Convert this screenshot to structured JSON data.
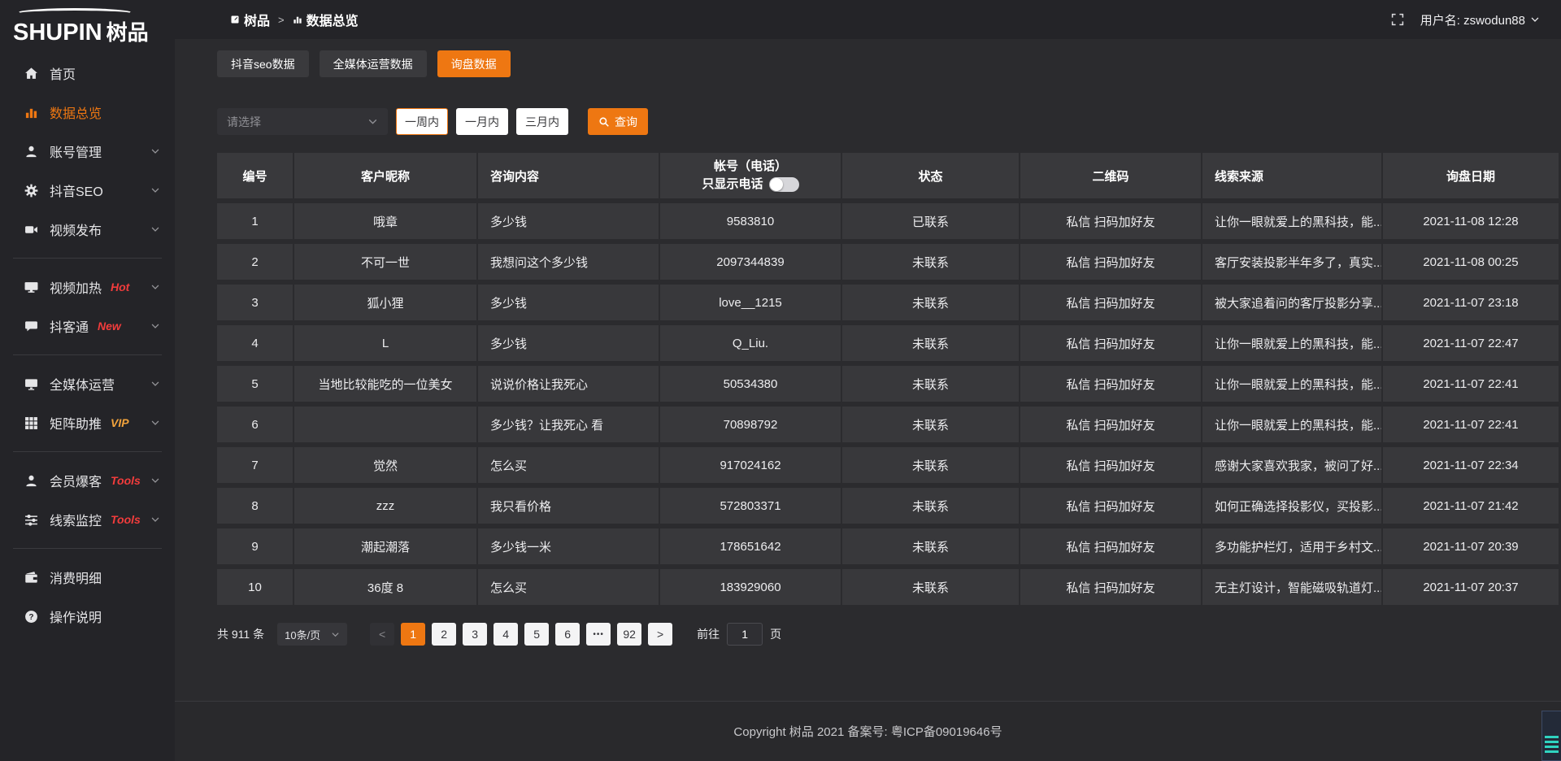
{
  "theme": {
    "accent": "#ee7712",
    "badge_red": "#f23c3c",
    "badge_vip": "#f2a33c",
    "status_contacted_color": "#e9e9eb",
    "status_pending_color": "#ee7712"
  },
  "logo": {
    "brand": "SHUPIN",
    "brand_cn": "树品"
  },
  "topbar": {
    "breadcrumb": {
      "root": "树品",
      "separator": ">",
      "current": "数据总览"
    },
    "username": "用户名: zswodun88"
  },
  "sidebar": {
    "items": [
      {
        "id": "home",
        "label": "首页",
        "icon": "home-icon"
      },
      {
        "id": "data-overview",
        "label": "数据总览",
        "icon": "bar-chart-icon",
        "active": true
      },
      {
        "id": "account-manage",
        "label": "账号管理",
        "icon": "user-icon",
        "chevron": true
      },
      {
        "id": "douyin-seo",
        "label": "抖音SEO",
        "icon": "gear-icon",
        "chevron": true
      },
      {
        "id": "video-publish",
        "label": "视频发布",
        "icon": "video-icon",
        "chevron": true
      },
      {
        "divider": true
      },
      {
        "id": "video-heat",
        "label": "视频加热",
        "icon": "display-icon",
        "badge": "Hot",
        "badge_color": "#f23c3c",
        "chevron": true
      },
      {
        "id": "douketong",
        "label": "抖客通",
        "icon": "chat-icon",
        "badge": "New",
        "badge_color": "#f23c3c",
        "chevron": true
      },
      {
        "divider": true
      },
      {
        "id": "media-ops",
        "label": "全媒体运营",
        "icon": "monitor-icon",
        "chevron": true
      },
      {
        "id": "matrix-boost",
        "label": "矩阵助推",
        "icon": "grid-icon",
        "badge": "VIP",
        "badge_color": "#f2a33c",
        "chevron": true
      },
      {
        "divider": true
      },
      {
        "id": "member-baoke",
        "label": "会员爆客",
        "icon": "user-icon",
        "badge": "Tools",
        "badge_color": "#f23c3c",
        "chevron": true
      },
      {
        "id": "clue-monitor",
        "label": "线索监控",
        "icon": "sliders-icon",
        "badge": "Tools",
        "badge_color": "#f23c3c",
        "chevron": true
      },
      {
        "divider": true
      },
      {
        "id": "consume-detail",
        "label": "消费明细",
        "icon": "wallet-icon"
      },
      {
        "id": "operation-guide",
        "label": "操作说明",
        "icon": "question-icon"
      }
    ]
  },
  "tabs": [
    {
      "id": "douyin-seo-data",
      "label": "抖音seo数据"
    },
    {
      "id": "media-ops-data",
      "label": "全媒体运营数据"
    },
    {
      "id": "inquiry-data",
      "label": "询盘数据",
      "active": true
    }
  ],
  "filters": {
    "select_placeholder": "请选择",
    "ranges": [
      {
        "id": "week",
        "label": "一周内",
        "active": true
      },
      {
        "id": "month",
        "label": "一月内"
      },
      {
        "id": "quarter",
        "label": "三月内"
      }
    ],
    "query_label": "查询"
  },
  "table": {
    "columns": [
      {
        "id": "no",
        "label": "编号"
      },
      {
        "id": "nickname",
        "label": "客户昵称"
      },
      {
        "id": "content",
        "label": "咨询内容",
        "align": "left"
      },
      {
        "id": "account",
        "label": "帐号（电话）",
        "toggle_label": "只显示电话",
        "toggle_on": false
      },
      {
        "id": "status",
        "label": "状态"
      },
      {
        "id": "qrcode",
        "label": "二维码"
      },
      {
        "id": "source",
        "label": "线索来源",
        "align": "left"
      },
      {
        "id": "date",
        "label": "询盘日期"
      }
    ],
    "rows": [
      {
        "no": "1",
        "nickname": "哦章",
        "content": "多少钱",
        "account": "9583810",
        "status": "已联系",
        "contacted": true,
        "qrcode": "私信 扫码加好友",
        "source": "让你一眼就爱上的黑科技，能...",
        "date": "2021-11-08 12:28"
      },
      {
        "no": "2",
        "nickname": "不可一世",
        "content": "我想问这个多少钱",
        "account": "2097344839",
        "status": "未联系",
        "contacted": false,
        "qrcode": "私信 扫码加好友",
        "source": "客厅安装投影半年多了，真实...",
        "date": "2021-11-08 00:25"
      },
      {
        "no": "3",
        "nickname": "狐小狸",
        "content": "多少钱",
        "account": "love__1215",
        "status": "未联系",
        "contacted": false,
        "qrcode": "私信 扫码加好友",
        "source": "被大家追着问的客厅投影分享...",
        "date": "2021-11-07 23:18"
      },
      {
        "no": "4",
        "nickname": "L",
        "content": "多少钱",
        "account": "Q_Liu.",
        "status": "未联系",
        "contacted": false,
        "qrcode": "私信 扫码加好友",
        "source": "让你一眼就爱上的黑科技，能...",
        "date": "2021-11-07 22:47"
      },
      {
        "no": "5",
        "nickname": "当地比较能吃的一位美女",
        "content": "说说价格让我死心",
        "account": "50534380",
        "status": "未联系",
        "contacted": false,
        "qrcode": "私信 扫码加好友",
        "source": "让你一眼就爱上的黑科技，能...",
        "date": "2021-11-07 22:41"
      },
      {
        "no": "6",
        "nickname": "",
        "content": "多少钱？让我死心 看",
        "account": "70898792",
        "status": "未联系",
        "contacted": false,
        "qrcode": "私信 扫码加好友",
        "source": "让你一眼就爱上的黑科技，能...",
        "date": "2021-11-07 22:41"
      },
      {
        "no": "7",
        "nickname": "觉然",
        "content": "怎么买",
        "account": "917024162",
        "status": "未联系",
        "contacted": false,
        "qrcode": "私信 扫码加好友",
        "source": "感谢大家喜欢我家，被问了好...",
        "date": "2021-11-07 22:34"
      },
      {
        "no": "8",
        "nickname": "zzz",
        "content": "我只看价格",
        "account": "572803371",
        "status": "未联系",
        "contacted": false,
        "qrcode": "私信 扫码加好友",
        "source": "如何正确选择投影仪，买投影...",
        "date": "2021-11-07 21:42"
      },
      {
        "no": "9",
        "nickname": "潮起潮落",
        "content": "多少钱一米",
        "account": "178651642",
        "status": "未联系",
        "contacted": false,
        "qrcode": "私信 扫码加好友",
        "source": "多功能护栏灯，适用于乡村文...",
        "date": "2021-11-07 20:39"
      },
      {
        "no": "10",
        "nickname": "36度 8",
        "content": "怎么买",
        "account": "183929060",
        "status": "未联系",
        "contacted": false,
        "qrcode": "私信 扫码加好友",
        "source": "无主灯设计，智能磁吸轨道灯...",
        "date": "2021-11-07 20:37"
      }
    ]
  },
  "pagination": {
    "total_label": "共 911 条",
    "page_size": "10条/页",
    "prev_label": "<",
    "next_label": ">",
    "pages": [
      "1",
      "2",
      "3",
      "4",
      "5",
      "6",
      "•••",
      "92"
    ],
    "active_page": "1",
    "goto_label": "前往",
    "goto_value": "1",
    "page_unit": "页"
  },
  "footer": {
    "copyright": "Copyright 树品 2021 备案号: 粤ICP备09019646号"
  }
}
